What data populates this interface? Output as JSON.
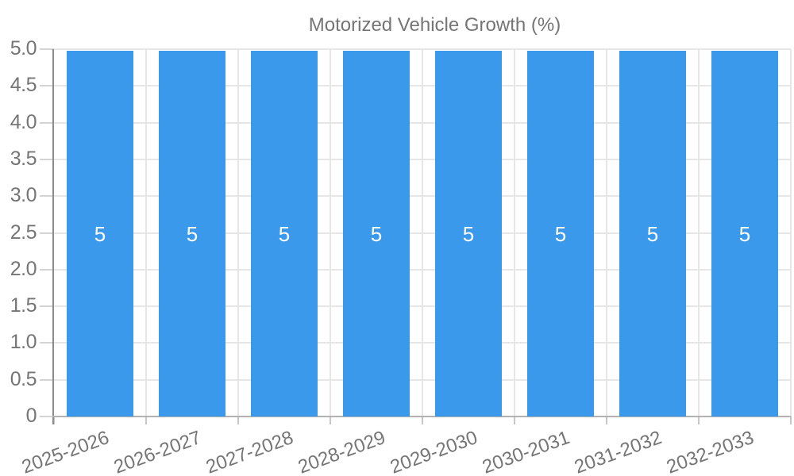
{
  "legend": {
    "label": "Motorized Vehicle Growth (%)"
  },
  "chart_data": {
    "type": "bar",
    "categories": [
      "2025-2026",
      "2026-2027",
      "2027-2028",
      "2028-2029",
      "2029-2030",
      "2030-2031",
      "2031-2032",
      "2032-2033"
    ],
    "series": [
      {
        "name": "Motorized Vehicle Growth (%)",
        "color": "#3b99ec",
        "values": [
          5,
          5,
          5,
          5,
          5,
          5,
          5,
          5
        ],
        "value_labels": [
          "5",
          "5",
          "5",
          "5",
          "5",
          "5",
          "5",
          "5"
        ]
      }
    ],
    "xlabel": "",
    "ylabel": "",
    "ylim": [
      0,
      5
    ],
    "ytick_labels": [
      "0",
      "0.5",
      "1.0",
      "1.5",
      "2.0",
      "2.5",
      "3.0",
      "3.5",
      "4.0",
      "4.5",
      "5.0"
    ],
    "grid": true,
    "legend_position": "top",
    "value_label_position": "center"
  }
}
